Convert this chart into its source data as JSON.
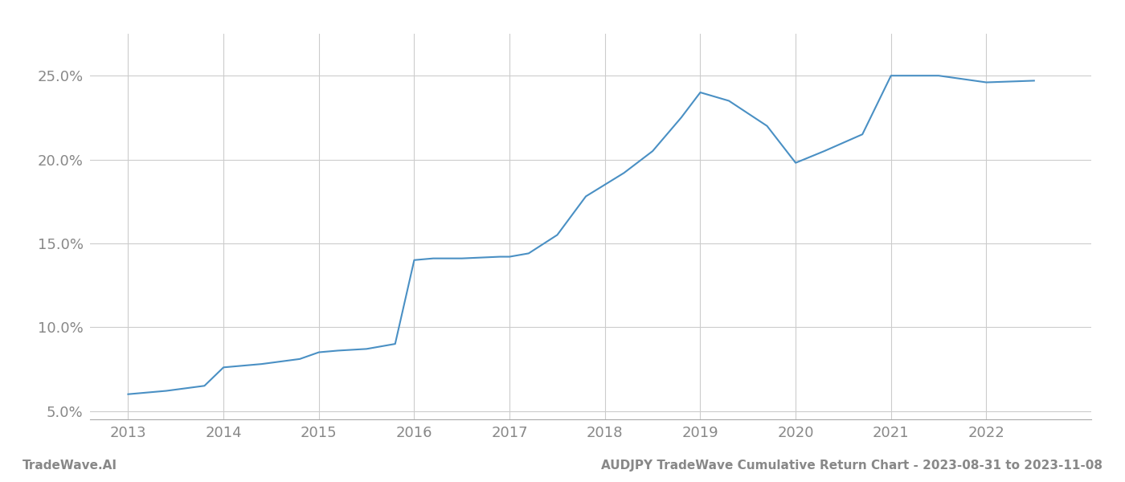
{
  "x_values": [
    2013.0,
    2013.4,
    2013.8,
    2014.0,
    2014.4,
    2014.8,
    2015.0,
    2015.2,
    2015.5,
    2015.8,
    2016.0,
    2016.2,
    2016.5,
    2016.9,
    2017.0,
    2017.2,
    2017.5,
    2017.8,
    2018.0,
    2018.2,
    2018.5,
    2018.8,
    2019.0,
    2019.3,
    2019.7,
    2020.0,
    2020.3,
    2020.7,
    2021.0,
    2021.2,
    2021.5,
    2022.0,
    2022.5
  ],
  "y_values": [
    6.0,
    6.2,
    6.5,
    7.6,
    7.8,
    8.1,
    8.5,
    8.6,
    8.7,
    9.0,
    14.0,
    14.1,
    14.1,
    14.2,
    14.2,
    14.4,
    15.5,
    17.8,
    18.5,
    19.2,
    20.5,
    22.5,
    24.0,
    23.5,
    22.0,
    19.8,
    20.5,
    21.5,
    25.0,
    25.0,
    25.0,
    24.6,
    24.7
  ],
  "line_color": "#4a90c4",
  "line_width": 1.5,
  "background_color": "#ffffff",
  "grid_color": "#cccccc",
  "ytick_labels": [
    "5.0%",
    "10.0%",
    "15.0%",
    "20.0%",
    "25.0%"
  ],
  "ytick_values": [
    5.0,
    10.0,
    15.0,
    20.0,
    25.0
  ],
  "xtick_values": [
    2013,
    2014,
    2015,
    2016,
    2017,
    2018,
    2019,
    2020,
    2021,
    2022
  ],
  "xlim": [
    2012.6,
    2023.1
  ],
  "ylim": [
    4.5,
    27.5
  ],
  "footer_left": "TradeWave.AI",
  "footer_right": "AUDJPY TradeWave Cumulative Return Chart - 2023-08-31 to 2023-11-08",
  "tick_color": "#888888",
  "footer_fontsize": 11,
  "tick_fontsize": 13
}
